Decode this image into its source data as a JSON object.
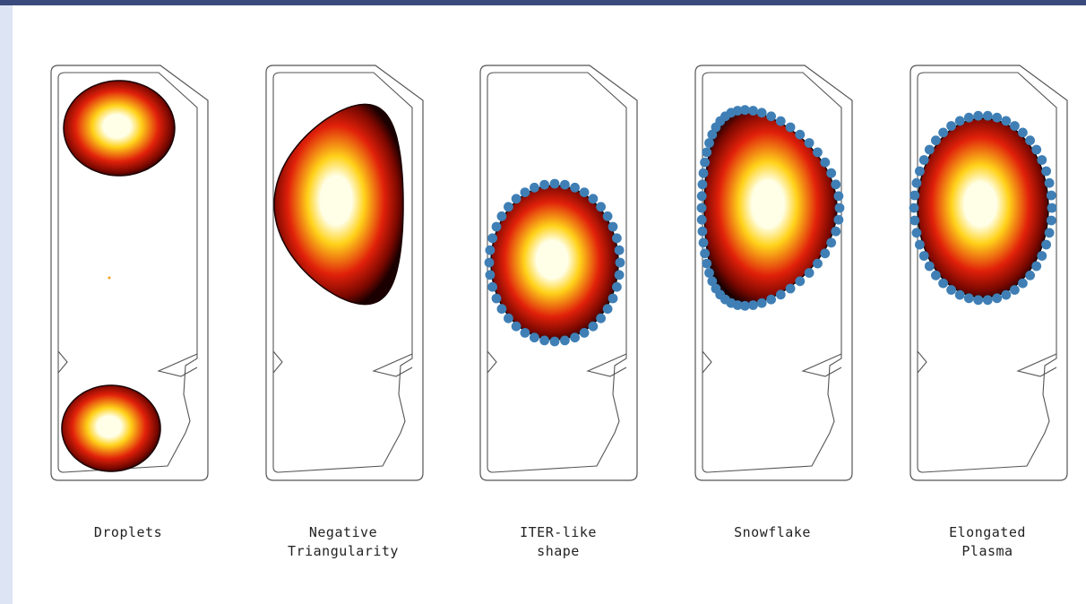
{
  "panels": [
    {
      "id": "droplets",
      "caption": [
        "Droplets"
      ],
      "plasma": "droplets",
      "markers": false
    },
    {
      "id": "negative-triangularity",
      "caption": [
        "Negative",
        "Triangularity"
      ],
      "plasma": "d-negative",
      "markers": false
    },
    {
      "id": "iter-like-shape",
      "caption": [
        "ITER-like",
        "shape"
      ],
      "plasma": "oval",
      "markers": true
    },
    {
      "id": "snowflake",
      "caption": [
        "Snowflake"
      ],
      "plasma": "d-shape",
      "markers": true
    },
    {
      "id": "elongated-plasma",
      "caption": [
        "Elongated",
        "Plasma"
      ],
      "plasma": "elongated",
      "markers": true
    }
  ],
  "colors": {
    "plasma_core": "#ffffe8",
    "plasma_mid": "#ffd21a",
    "plasma_outer": "#e0200a",
    "plasma_edge": "#1a0000",
    "marker": "#3f7fb5",
    "vessel": "#555555"
  }
}
